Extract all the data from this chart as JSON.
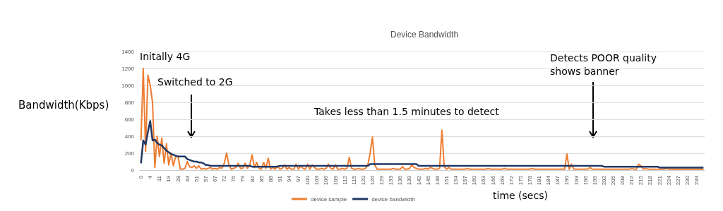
{
  "chart_data": {
    "type": "line",
    "title": "Device Bandwidth",
    "xlabel": "time (secs)",
    "ylabel": "Bandwidth(Kbps)",
    "annotations": [
      "Initally 4G",
      "Switched to 2G",
      "Takes less than 1.5 minutes to detect",
      "Detects POOR quality\nshows banner"
    ],
    "categories": [
      "0",
      null,
      null,
      null,
      "4",
      null,
      null,
      null,
      "11",
      null,
      null,
      null,
      "19",
      null,
      null,
      null,
      "28",
      null,
      null,
      null,
      "43",
      null,
      null,
      null,
      "51",
      null,
      null,
      null,
      "57",
      null,
      null,
      null,
      "67",
      null,
      null,
      null,
      "72",
      null,
      null,
      null,
      "76",
      null,
      null,
      null,
      "79",
      null,
      null,
      null,
      "82",
      null,
      null,
      null,
      "85",
      null,
      null,
      null,
      "88",
      null,
      null,
      null,
      "91",
      null,
      null,
      null,
      "94",
      null,
      null,
      null,
      "97",
      null,
      null,
      null,
      "100",
      null,
      null,
      null,
      "103",
      null,
      null,
      null,
      "106",
      null,
      null,
      null,
      "109",
      null,
      null,
      null,
      "112",
      null,
      null,
      null,
      "115",
      null,
      null,
      null,
      "120",
      null,
      null,
      null,
      "126",
      null,
      null,
      null,
      "129",
      null,
      null,
      null,
      "133",
      null,
      null,
      null,
      "136",
      null,
      null,
      null,
      "139",
      null,
      null,
      null,
      "142",
      null,
      null,
      null,
      "145",
      null,
      null,
      null,
      "148",
      null,
      null,
      null,
      "151",
      null,
      null,
      null,
      "154",
      null,
      null,
      null,
      "157",
      null,
      null,
      null,
      "160",
      null,
      null,
      null,
      "163",
      null,
      null,
      null,
      "166",
      null,
      null,
      null,
      "169",
      null,
      null,
      null,
      "172",
      null,
      null,
      null,
      "175",
      null,
      null,
      null,
      "178",
      null,
      null,
      null,
      "181",
      null,
      null,
      null,
      "184",
      null,
      null,
      null,
      "187",
      null,
      null,
      null,
      "190",
      null,
      null,
      null,
      "193",
      null,
      null,
      null,
      "196",
      null,
      null,
      null,
      "199",
      null,
      null,
      null,
      "202",
      null,
      null,
      null,
      "205",
      null,
      null,
      null,
      "208",
      null,
      null,
      null,
      "212",
      null,
      null,
      null,
      "215",
      null,
      null,
      null,
      "218",
      null,
      null,
      null,
      "221",
      null,
      null,
      null,
      "224",
      null,
      null,
      null,
      "227",
      null,
      null,
      null,
      "230",
      null,
      null,
      null,
      "233",
      null,
      null,
      null
    ],
    "series": [
      {
        "name": "device sample",
        "color": "#ed7d31",
        "values": [
          350,
          1200,
          220,
          1120,
          1000,
          800,
          30,
          400,
          160,
          380,
          80,
          310,
          60,
          200,
          50,
          160,
          160,
          10,
          10,
          20,
          100,
          40,
          30,
          50,
          20,
          50,
          10,
          20,
          10,
          20,
          30,
          10,
          20,
          10,
          30,
          20,
          80,
          200,
          60,
          10,
          20,
          30,
          80,
          20,
          20,
          80,
          20,
          60,
          180,
          30,
          90,
          20,
          10,
          90,
          20,
          140,
          10,
          30,
          10,
          50,
          10,
          20,
          60,
          10,
          30,
          10,
          10,
          70,
          10,
          50,
          20,
          10,
          70,
          10,
          60,
          30,
          10,
          10,
          20,
          10,
          20,
          70,
          20,
          10,
          60,
          10,
          10,
          20,
          10,
          20,
          150,
          20,
          10,
          10,
          20,
          10,
          10,
          20,
          60,
          200,
          390,
          60,
          10,
          10,
          10,
          10,
          10,
          10,
          10,
          20,
          10,
          10,
          10,
          40,
          10,
          10,
          20,
          60,
          30,
          20,
          10,
          10,
          10,
          20,
          10,
          30,
          20,
          10,
          10,
          20,
          470,
          40,
          10,
          30,
          10,
          10,
          10,
          10,
          10,
          10,
          10,
          20,
          10,
          10,
          10,
          10,
          10,
          10,
          10,
          10,
          20,
          10,
          10,
          10,
          10,
          10,
          10,
          20,
          10,
          10,
          10,
          10,
          10,
          10,
          10,
          10,
          10,
          10,
          10,
          20,
          10,
          10,
          10,
          10,
          10,
          10,
          10,
          10,
          10,
          10,
          10,
          10,
          10,
          10,
          190,
          10,
          70,
          10,
          10,
          10,
          10,
          10,
          10,
          10,
          30,
          10,
          10,
          10,
          10,
          10,
          10,
          10,
          10,
          10,
          10,
          10,
          10,
          10,
          10,
          10,
          10,
          10,
          20,
          10,
          10,
          70,
          50,
          10,
          20,
          10,
          10,
          10,
          10,
          10,
          10,
          10,
          10,
          20,
          10,
          10,
          10,
          10,
          10,
          10,
          10,
          10,
          10,
          10,
          10,
          10,
          10,
          10,
          10,
          10
        ]
      },
      {
        "name": "device bandwidth",
        "color": "#203864",
        "values": [
          80,
          350,
          300,
          450,
          580,
          350,
          360,
          320,
          300,
          290,
          260,
          230,
          210,
          190,
          180,
          170,
          160,
          160,
          160,
          160,
          130,
          120,
          110,
          100,
          100,
          90,
          90,
          80,
          60,
          60,
          50,
          50,
          50,
          50,
          50,
          50,
          50,
          50,
          50,
          50,
          50,
          50,
          50,
          50,
          50,
          50,
          50,
          50,
          40,
          40,
          40,
          40,
          40,
          40,
          40,
          40,
          40,
          40,
          40,
          40,
          50,
          50,
          50,
          50,
          50,
          50,
          50,
          50,
          50,
          50,
          50,
          50,
          50,
          50,
          50,
          50,
          50,
          50,
          50,
          50,
          50,
          50,
          50,
          50,
          50,
          50,
          50,
          50,
          50,
          50,
          50,
          50,
          50,
          50,
          50,
          50,
          50,
          50,
          50,
          70,
          70,
          70,
          70,
          70,
          70,
          70,
          70,
          70,
          70,
          70,
          70,
          70,
          70,
          70,
          70,
          70,
          70,
          70,
          70,
          70,
          50,
          50,
          50,
          50,
          50,
          50,
          50,
          50,
          50,
          50,
          50,
          50,
          50,
          50,
          50,
          50,
          50,
          50,
          50,
          50,
          50,
          50,
          50,
          50,
          50,
          50,
          50,
          50,
          50,
          50,
          50,
          50,
          50,
          50,
          50,
          50,
          50,
          50,
          50,
          50,
          50,
          50,
          50,
          50,
          50,
          50,
          50,
          50,
          50,
          50,
          50,
          50,
          50,
          50,
          50,
          50,
          50,
          50,
          50,
          50,
          50,
          50,
          50,
          50,
          50,
          50,
          50,
          50,
          50,
          50,
          50,
          50,
          50,
          50,
          50,
          50,
          50,
          50,
          50,
          50,
          40,
          40,
          40,
          40,
          40,
          40,
          40,
          40,
          40,
          40,
          40,
          40,
          40,
          40,
          40,
          40,
          40,
          40,
          40,
          40,
          40,
          40,
          40,
          40,
          30,
          30,
          30,
          30,
          30,
          30,
          30,
          30,
          30,
          30,
          30,
          30,
          30,
          30,
          30,
          30,
          30,
          30,
          30,
          30
        ]
      }
    ],
    "ylim": [
      0,
      1400
    ],
    "yticks": [
      0,
      200,
      400,
      600,
      800,
      {
        "value": 1000,
        "label": "1000"
      },
      {
        "value": 1200,
        "label": "1200"
      },
      {
        "value": 1400,
        "label": "1400"
      }
    ],
    "grid": "y",
    "legend": "bottom",
    "marker": "none",
    "line_style": "solid"
  }
}
